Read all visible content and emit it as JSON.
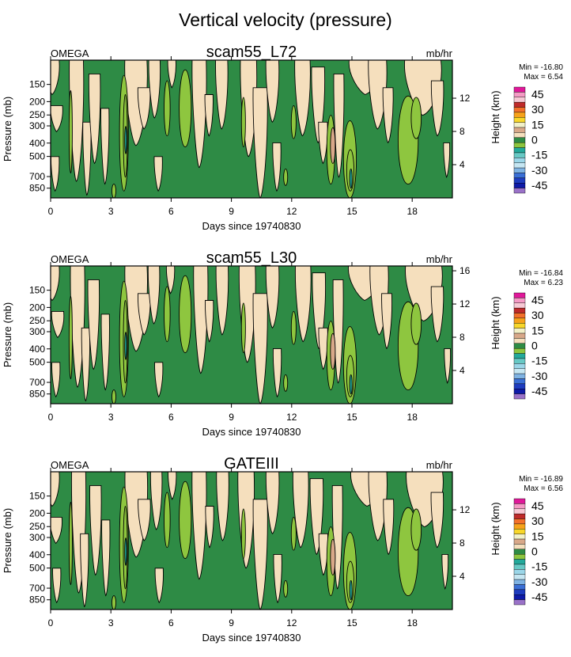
{
  "figure_title": "Vertical velocity (pressure)",
  "colors": {
    "pos_light": "#f5dfbd",
    "neg_dark": "#2e8b45",
    "neg_mid": "#8ec63f",
    "neg_teal": "#23a99b",
    "pos_tan": "#d8a889",
    "line": "#000000"
  },
  "colorbar": {
    "tick_labels": [
      "45",
      "30",
      "15",
      "0",
      "-15",
      "-30",
      "-45"
    ],
    "colors": [
      "#e0189a",
      "#f59ac5",
      "#f7c8d4",
      "#bf2a2a",
      "#f3702a",
      "#f7a21a",
      "#f8d72a",
      "#f2f0c8",
      "#d8a889",
      "#f5dfbd",
      "#2e8b45",
      "#8ec63f",
      "#23a99b",
      "#67c9c5",
      "#9bd6e8",
      "#c5e6f2",
      "#7fb3e3",
      "#3a6fd6",
      "#1e3cbf",
      "#0e1aa8",
      "#9a72c8"
    ]
  },
  "chart_data": [
    {
      "type": "contour",
      "title": "scam55_L72",
      "left_label": "OMEGA",
      "units": "mb/hr",
      "xlabel": "Days since 19740830",
      "ylabel": "Pressure (mb)",
      "ylabel_right": "Height (km)",
      "x_ticks": [
        0,
        3,
        6,
        9,
        12,
        15,
        18
      ],
      "x_range": [
        0,
        20
      ],
      "y_ticks": [
        150,
        200,
        250,
        300,
        400,
        500,
        700,
        850
      ],
      "y_range_mb": [
        100,
        1000
      ],
      "height_ticks_km": [
        4,
        8,
        12
      ],
      "min": "-16.80",
      "max": "6.54",
      "min_label": "Min = -16.80",
      "max_label": "Max =   6.54",
      "upward_maxima": [
        {
          "day": 3.7,
          "p_mb": 400,
          "value": -16.8
        },
        {
          "day": 14.9,
          "p_mb": 780,
          "value": -15
        },
        {
          "day": 17.5,
          "p_mb": 500,
          "value": -8
        }
      ]
    },
    {
      "type": "contour",
      "title": "scam55_L30",
      "left_label": "OMEGA",
      "units": "mb/hr",
      "xlabel": "Days since 19740830",
      "ylabel": "Pressure (mb)",
      "ylabel_right": "Height (km)",
      "x_ticks": [
        0,
        3,
        6,
        9,
        12,
        15,
        18
      ],
      "x_range": [
        0,
        20
      ],
      "y_ticks": [
        150,
        200,
        250,
        300,
        400,
        500,
        700,
        850
      ],
      "y_range_mb": [
        100,
        1000
      ],
      "height_ticks_km": [
        4,
        8,
        12,
        16
      ],
      "min": "-16.84",
      "max": "6.23",
      "min_label": "Min = -16.84",
      "max_label": "Max =   6.23",
      "upward_maxima": [
        {
          "day": 3.7,
          "p_mb": 400,
          "value": -16.84
        },
        {
          "day": 14.9,
          "p_mb": 700,
          "value": -15
        },
        {
          "day": 17.5,
          "p_mb": 500,
          "value": -8
        }
      ]
    },
    {
      "type": "contour",
      "title": "GATEIII",
      "left_label": "OMEGA",
      "units": "mb/hr",
      "xlabel": "Days since 19740830",
      "ylabel": "Pressure (mb)",
      "ylabel_right": "Height (km)",
      "x_ticks": [
        0,
        3,
        6,
        9,
        12,
        15,
        18
      ],
      "x_range": [
        0,
        20
      ],
      "y_ticks": [
        150,
        200,
        250,
        300,
        400,
        500,
        700,
        850
      ],
      "y_range_mb": [
        100,
        1000
      ],
      "height_ticks_km": [
        4,
        8,
        12
      ],
      "min": "-16.89",
      "max": "6.56",
      "min_label": "Min = -16.89",
      "max_label": "Max =   6.56",
      "upward_maxima": [
        {
          "day": 3.7,
          "p_mb": 400,
          "value": -16.89
        },
        {
          "day": 14.9,
          "p_mb": 700,
          "value": -15
        },
        {
          "day": 17.5,
          "p_mb": 500,
          "value": -8
        }
      ]
    }
  ]
}
